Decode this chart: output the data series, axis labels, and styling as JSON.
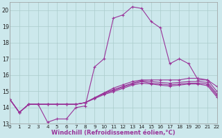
{
  "xlabel": "Windchill (Refroidissement éolien,°C)",
  "background_color": "#cce8ec",
  "grid_color": "#aacccc",
  "line_color": "#993399",
  "xlim": [
    0,
    22
  ],
  "ylim": [
    13,
    20.5
  ],
  "xticks": [
    0,
    1,
    2,
    3,
    4,
    5,
    6,
    7,
    8,
    9,
    10,
    11,
    12,
    13,
    14,
    15,
    16,
    17,
    18,
    19,
    20,
    21,
    22
  ],
  "yticks": [
    13,
    14,
    15,
    16,
    17,
    18,
    19,
    20
  ],
  "series": [
    [
      14.5,
      13.7,
      14.2,
      14.2,
      13.1,
      13.3,
      13.3,
      14.0,
      14.1,
      16.5,
      17.0,
      19.5,
      19.7,
      20.2,
      20.1,
      19.3,
      18.9,
      16.7,
      17.0,
      16.7,
      15.7,
      15.7,
      15.3
    ],
    [
      14.5,
      13.7,
      14.2,
      14.2,
      14.2,
      14.2,
      14.2,
      14.2,
      14.3,
      14.6,
      14.9,
      15.2,
      15.4,
      15.6,
      15.7,
      15.7,
      15.7,
      15.7,
      15.7,
      15.8,
      15.8,
      15.7,
      15.0
    ],
    [
      14.5,
      13.7,
      14.2,
      14.2,
      14.2,
      14.2,
      14.2,
      14.2,
      14.3,
      14.6,
      14.9,
      15.1,
      15.3,
      15.5,
      15.65,
      15.6,
      15.55,
      15.5,
      15.55,
      15.6,
      15.6,
      15.55,
      14.85
    ],
    [
      14.5,
      13.7,
      14.2,
      14.2,
      14.2,
      14.2,
      14.2,
      14.2,
      14.3,
      14.6,
      14.85,
      15.05,
      15.25,
      15.45,
      15.6,
      15.5,
      15.45,
      15.4,
      15.45,
      15.5,
      15.5,
      15.45,
      14.75
    ],
    [
      14.5,
      13.7,
      14.2,
      14.2,
      14.2,
      14.2,
      14.2,
      14.2,
      14.3,
      14.55,
      14.8,
      14.98,
      15.18,
      15.38,
      15.5,
      15.45,
      15.38,
      15.32,
      15.38,
      15.45,
      15.45,
      15.35,
      14.65
    ]
  ]
}
